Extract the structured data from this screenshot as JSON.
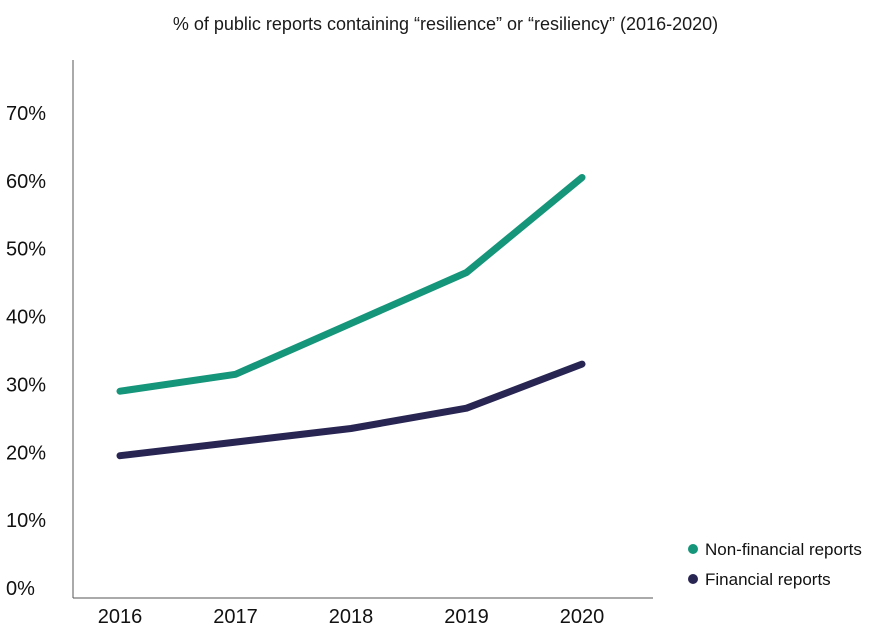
{
  "chart_data": {
    "type": "line",
    "title": "% of public reports containing “resilience” or “resiliency” (2016-2020)",
    "xlabel": "",
    "ylabel": "",
    "x": [
      "2016",
      "2017",
      "2018",
      "2019",
      "2020"
    ],
    "y_ticks": [
      "0%",
      "10%",
      "20%",
      "30%",
      "40%",
      "50%",
      "60%",
      "70%"
    ],
    "ylim": [
      0,
      70
    ],
    "unit": "%",
    "grid": false,
    "legend_position": "bottom-right",
    "series": [
      {
        "name": "Non-financial reports",
        "color": "#15957a",
        "values": [
          29,
          31.5,
          39,
          46.5,
          60.5
        ]
      },
      {
        "name": "Financial reports",
        "color": "#282553",
        "values": [
          19.5,
          21.5,
          23.5,
          26.5,
          33
        ]
      }
    ]
  }
}
